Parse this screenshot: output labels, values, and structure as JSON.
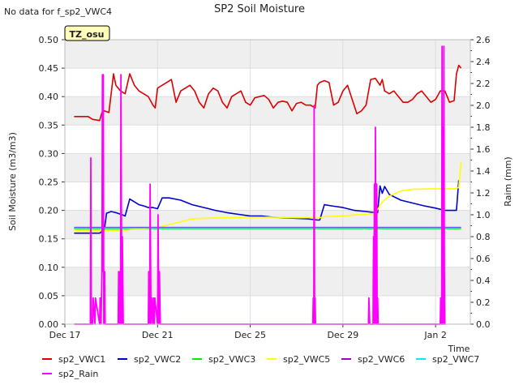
{
  "chart_data": {
    "type": "line",
    "title": "SP2 Soil Moisture",
    "note": "No data for f_sp2_VWC4",
    "site_badge": "TZ_osu",
    "xlabel": "Time",
    "ylabel": "Soil Moisture (m3/m3)",
    "y2label": "Raim (mm)",
    "xlim": [
      0,
      17.5
    ],
    "ylim": [
      0,
      0.5
    ],
    "y2lim": [
      0,
      2.6
    ],
    "x_ticks": [
      {
        "x": 0,
        "label": "Dec 17"
      },
      {
        "x": 4,
        "label": "Dec 21"
      },
      {
        "x": 8,
        "label": "Dec 25"
      },
      {
        "x": 12,
        "label": "Dec 29"
      },
      {
        "x": 16,
        "label": "Jan 2"
      }
    ],
    "y_ticks": [
      0.0,
      0.05,
      0.1,
      0.15,
      0.2,
      0.25,
      0.3,
      0.35,
      0.4,
      0.45,
      0.5
    ],
    "y_tick_labels": [
      "0.00",
      "0.05",
      "0.10",
      "0.15",
      "0.20",
      "0.25",
      "0.30",
      "0.35",
      "0.40",
      "0.45",
      "0.50"
    ],
    "y2_ticks": [
      0.0,
      0.2,
      0.4,
      0.6,
      0.8,
      1.0,
      1.2,
      1.4,
      1.6,
      1.8,
      2.0,
      2.2,
      2.4,
      2.6
    ],
    "y2_tick_labels": [
      "0.0",
      "0.2",
      "0.4",
      "0.6",
      "0.8",
      "1.0",
      "1.2",
      "1.4",
      "1.6",
      "1.8",
      "2.0",
      "2.2",
      "2.4",
      "2.6"
    ],
    "grid": "horizontal bands",
    "legend_placement": "bottom",
    "series": [
      {
        "name": "sp2_VWC1",
        "color": "#dd0000",
        "axis": "left",
        "x": [
          0.4,
          1.0,
          1.2,
          1.5,
          1.6,
          1.7,
          1.9,
          2.1,
          2.2,
          2.4,
          2.6,
          2.8,
          3.0,
          3.2,
          3.4,
          3.6,
          3.8,
          3.9,
          4.0,
          4.2,
          4.4,
          4.6,
          4.8,
          5.0,
          5.2,
          5.4,
          5.6,
          5.8,
          6.0,
          6.2,
          6.4,
          6.6,
          6.8,
          7.0,
          7.2,
          7.4,
          7.6,
          7.8,
          8.0,
          8.2,
          8.4,
          8.6,
          8.8,
          9.0,
          9.2,
          9.4,
          9.6,
          9.8,
          10.0,
          10.2,
          10.4,
          10.6,
          10.8,
          10.9,
          11.0,
          11.2,
          11.4,
          11.6,
          11.8,
          12.0,
          12.2,
          12.4,
          12.6,
          12.8,
          13.0,
          13.2,
          13.4,
          13.6,
          13.7,
          13.8,
          14.0,
          14.2,
          14.4,
          14.6,
          14.8,
          15.0,
          15.2,
          15.4,
          15.6,
          15.8,
          16.0,
          16.2,
          16.4,
          16.6,
          16.8,
          16.9,
          17.0,
          17.1
        ],
        "y": [
          0.365,
          0.365,
          0.36,
          0.358,
          0.372,
          0.375,
          0.372,
          0.44,
          0.42,
          0.41,
          0.405,
          0.44,
          0.42,
          0.41,
          0.405,
          0.4,
          0.385,
          0.38,
          0.415,
          0.42,
          0.425,
          0.43,
          0.39,
          0.41,
          0.415,
          0.42,
          0.41,
          0.39,
          0.38,
          0.405,
          0.415,
          0.41,
          0.39,
          0.38,
          0.4,
          0.405,
          0.41,
          0.39,
          0.385,
          0.398,
          0.4,
          0.402,
          0.395,
          0.38,
          0.39,
          0.392,
          0.39,
          0.375,
          0.388,
          0.39,
          0.385,
          0.385,
          0.38,
          0.42,
          0.425,
          0.428,
          0.425,
          0.385,
          0.39,
          0.41,
          0.42,
          0.395,
          0.37,
          0.375,
          0.385,
          0.43,
          0.432,
          0.42,
          0.43,
          0.41,
          0.405,
          0.41,
          0.4,
          0.39,
          0.39,
          0.395,
          0.405,
          0.41,
          0.4,
          0.39,
          0.395,
          0.41,
          0.41,
          0.39,
          0.393,
          0.44,
          0.455,
          0.45
        ]
      },
      {
        "name": "sp2_VWC2",
        "color": "#0000cc",
        "axis": "left",
        "x": [
          0.4,
          1.0,
          1.5,
          1.6,
          1.7,
          1.8,
          2.0,
          2.2,
          2.5,
          2.6,
          2.8,
          3.0,
          3.2,
          3.4,
          3.6,
          3.8,
          4.0,
          4.2,
          4.5,
          5.0,
          5.5,
          6.0,
          6.5,
          7.0,
          7.5,
          8.0,
          8.5,
          9.0,
          9.5,
          10.0,
          10.5,
          10.9,
          11.0,
          11.2,
          11.5,
          12.0,
          12.5,
          13.0,
          13.4,
          13.5,
          13.6,
          13.7,
          13.8,
          14.0,
          14.5,
          15.0,
          15.5,
          16.0,
          16.4,
          16.7,
          16.8,
          16.9,
          17.0
        ],
        "y": [
          0.16,
          0.16,
          0.16,
          0.163,
          0.165,
          0.195,
          0.198,
          0.196,
          0.192,
          0.19,
          0.22,
          0.215,
          0.21,
          0.208,
          0.205,
          0.205,
          0.203,
          0.222,
          0.222,
          0.218,
          0.21,
          0.205,
          0.2,
          0.196,
          0.193,
          0.19,
          0.19,
          0.188,
          0.187,
          0.186,
          0.185,
          0.183,
          0.183,
          0.21,
          0.208,
          0.205,
          0.2,
          0.198,
          0.196,
          0.196,
          0.243,
          0.23,
          0.242,
          0.228,
          0.218,
          0.213,
          0.208,
          0.204,
          0.2,
          0.2,
          0.2,
          0.2,
          0.253
        ]
      },
      {
        "name": "sp2_VWC3",
        "color": "#00ee00",
        "axis": "left",
        "x": [
          0.4,
          17.1
        ],
        "y": [
          0.168,
          0.168
        ]
      },
      {
        "name": "sp2_VWC5",
        "color": "#ffff00",
        "axis": "left",
        "x": [
          0.4,
          1.5,
          2.0,
          2.5,
          3.0,
          3.5,
          4.0,
          4.5,
          5.0,
          5.5,
          6.0,
          7.0,
          8.0,
          9.0,
          10.0,
          10.5,
          10.9,
          11.2,
          12.0,
          12.5,
          13.0,
          13.4,
          13.7,
          14.0,
          14.5,
          15.0,
          16.0,
          16.4,
          16.8,
          17.0,
          17.1
        ],
        "y": [
          0.165,
          0.165,
          0.165,
          0.165,
          0.167,
          0.168,
          0.17,
          0.175,
          0.18,
          0.185,
          0.186,
          0.187,
          0.188,
          0.188,
          0.187,
          0.187,
          0.186,
          0.189,
          0.19,
          0.192,
          0.193,
          0.195,
          0.215,
          0.225,
          0.234,
          0.237,
          0.238,
          0.238,
          0.238,
          0.24,
          0.285
        ]
      },
      {
        "name": "sp2_VWC6",
        "color": "#9900cc",
        "axis": "left",
        "x": [
          0.4,
          17.1
        ],
        "y": [
          0.17,
          0.17
        ]
      },
      {
        "name": "sp2_VWC7",
        "color": "#00eeee",
        "axis": "left",
        "x": [
          0.4,
          17.1
        ],
        "y": [
          0.169,
          0.169
        ]
      },
      {
        "name": "sp2_Rain",
        "color": "#ff00ff",
        "axis": "right",
        "x": [
          0.4,
          1.1,
          1.12,
          1.14,
          1.2,
          1.22,
          1.3,
          1.32,
          1.5,
          1.52,
          1.56,
          1.6,
          1.62,
          1.64,
          1.66,
          1.68,
          1.72,
          1.74,
          2.3,
          2.32,
          2.36,
          2.38,
          2.4,
          2.42,
          2.46,
          2.48,
          2.52,
          2.54,
          2.56,
          3.6,
          3.62,
          3.66,
          3.68,
          3.72,
          3.74,
          3.8,
          3.82,
          3.86,
          3.88,
          4.0,
          4.02,
          4.06,
          4.08,
          4.12,
          4.14,
          10.6,
          10.7,
          10.72,
          10.74,
          10.76,
          10.78,
          10.8,
          10.82,
          10.84,
          10.88,
          10.9,
          13.1,
          13.12,
          13.16,
          13.18,
          13.3,
          13.32,
          13.34,
          13.36,
          13.38,
          13.4,
          13.42,
          13.44,
          13.46,
          13.48,
          13.5,
          13.52,
          13.56,
          13.58,
          13.6,
          13.62,
          16.2,
          16.22,
          16.26,
          16.28,
          16.3,
          16.32,
          16.34,
          16.36,
          16.38,
          16.4,
          16.42,
          16.44
        ],
        "y": [
          0,
          0,
          1.52,
          0,
          0,
          0.24,
          0,
          0.24,
          0,
          0.24,
          0,
          0.48,
          2.28,
          0.48,
          2.28,
          0,
          0.48,
          0,
          0,
          0.48,
          0,
          0.48,
          0,
          2.28,
          0,
          0.8,
          0,
          0,
          0,
          0,
          0.48,
          0,
          1.28,
          0,
          0.24,
          0,
          0.24,
          0,
          0.24,
          0,
          1.0,
          0,
          0.48,
          0,
          0,
          0,
          0,
          0.24,
          0,
          2.0,
          0,
          0.24,
          0,
          0,
          0,
          0,
          0,
          0.24,
          0,
          0,
          0,
          0.8,
          0,
          1.28,
          0,
          1.8,
          0.8,
          0,
          1.28,
          0,
          0.24,
          0,
          0,
          0,
          0,
          0,
          0,
          0.24,
          0,
          2.54,
          0,
          1.8,
          0,
          2.54,
          0.5,
          0,
          0,
          0
        ]
      }
    ],
    "legend": [
      {
        "label": "sp2_VWC1",
        "color": "#dd0000"
      },
      {
        "label": "sp2_VWC2",
        "color": "#0000cc"
      },
      {
        "label": "sp2_VWC3",
        "color": "#00ee00"
      },
      {
        "label": "sp2_VWC5",
        "color": "#ffff00"
      },
      {
        "label": "sp2_VWC6",
        "color": "#9900cc"
      },
      {
        "label": "sp2_VWC7",
        "color": "#00eeee"
      },
      {
        "label": "sp2_Rain",
        "color": "#ff00ff"
      }
    ]
  }
}
